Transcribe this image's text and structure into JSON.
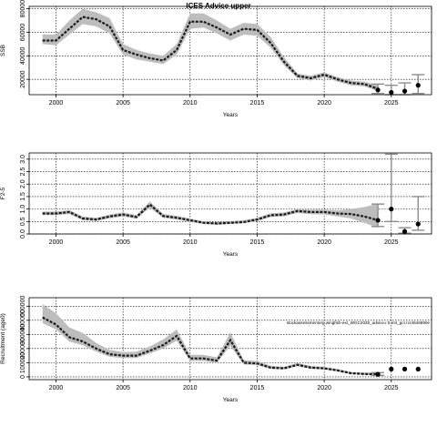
{
  "title": "ICES Advice upper",
  "colors": {
    "line": "#1a1a1a",
    "band": "#bdbdbd",
    "grid": "#000000",
    "errorbar": "#8c8c8c",
    "point": "#000000"
  },
  "chart_data": [
    {
      "type": "line",
      "title": "ICES Advice upper",
      "xlabel": "Years",
      "ylabel": "SSB",
      "xlim": [
        1998,
        2028
      ],
      "ylim": [
        7000,
        82000
      ],
      "xticks": [
        2000,
        2005,
        2010,
        2015,
        2020,
        2025
      ],
      "yticks": [
        20000,
        40000,
        60000,
        80000
      ],
      "ytick_labels": [
        "20000",
        "40000",
        "60000",
        "80000"
      ],
      "grid": true,
      "series": [
        {
          "x": [
            1999,
            2000,
            2001,
            2002,
            2003,
            2004,
            2005,
            2006,
            2007,
            2008,
            2009,
            2010,
            2011,
            2012,
            2013,
            2014,
            2015,
            2016,
            2017,
            2018,
            2019,
            2020,
            2021,
            2022,
            2023,
            2024
          ],
          "values": [
            53000,
            53000,
            63000,
            73000,
            71000,
            65000,
            45000,
            41000,
            38000,
            36000,
            45000,
            69000,
            69000,
            64000,
            58000,
            63000,
            62000,
            51000,
            35000,
            23000,
            21000,
            24000,
            20000,
            17000,
            16000,
            12000
          ],
          "lower": [
            50000,
            49000,
            58000,
            67000,
            65000,
            59000,
            41000,
            37000,
            35000,
            33000,
            41000,
            63000,
            64000,
            59000,
            53000,
            58000,
            57000,
            47000,
            32000,
            21000,
            19000,
            22000,
            18000,
            15000,
            14000,
            10000
          ],
          "upper": [
            58000,
            58000,
            70000,
            80000,
            77000,
            72000,
            50000,
            45000,
            42000,
            40000,
            50000,
            76000,
            76000,
            70000,
            63000,
            68000,
            67000,
            56000,
            39000,
            25000,
            23000,
            26000,
            22000,
            19000,
            18000,
            15000
          ]
        }
      ],
      "points": [
        {
          "x": 2024,
          "y": 11000,
          "low": 8000,
          "high": 16000
        },
        {
          "x": 2025,
          "y": 9000,
          "low": 7000,
          "high": 15000
        },
        {
          "x": 2026,
          "y": 10000,
          "low": 7000,
          "high": 17000
        },
        {
          "x": 2027,
          "y": 15000,
          "low": 8000,
          "high": 24000
        }
      ]
    },
    {
      "type": "line",
      "title": "",
      "xlabel": "Years",
      "ylabel": "F2-5",
      "xlim": [
        1998,
        2028
      ],
      "ylim": [
        0,
        3.25
      ],
      "xticks": [
        2000,
        2005,
        2010,
        2015,
        2020,
        2025
      ],
      "yticks": [
        0.0,
        0.5,
        1.0,
        1.5,
        2.0,
        2.5,
        3.0
      ],
      "ytick_labels": [
        "0.0",
        "0.5",
        "1.0",
        "1.5",
        "2.0",
        "2.5",
        "3.0"
      ],
      "grid": true,
      "series": [
        {
          "x": [
            1999,
            2000,
            2001,
            2002,
            2003,
            2004,
            2005,
            2006,
            2007,
            2008,
            2009,
            2010,
            2011,
            2012,
            2013,
            2014,
            2015,
            2016,
            2017,
            2018,
            2019,
            2020,
            2021,
            2022,
            2023,
            2024
          ],
          "values": [
            0.82,
            0.82,
            0.88,
            0.62,
            0.58,
            0.7,
            0.78,
            0.68,
            1.18,
            0.72,
            0.65,
            0.55,
            0.45,
            0.42,
            0.45,
            0.48,
            0.58,
            0.75,
            0.78,
            0.92,
            0.88,
            0.88,
            0.82,
            0.8,
            0.7,
            0.55
          ],
          "lower": [
            0.76,
            0.76,
            0.8,
            0.56,
            0.52,
            0.63,
            0.7,
            0.61,
            1.05,
            0.65,
            0.58,
            0.49,
            0.4,
            0.37,
            0.4,
            0.43,
            0.52,
            0.68,
            0.71,
            0.84,
            0.79,
            0.78,
            0.7,
            0.62,
            0.45,
            0.25
          ],
          "upper": [
            0.9,
            0.9,
            0.96,
            0.7,
            0.65,
            0.78,
            0.87,
            0.76,
            1.3,
            0.8,
            0.73,
            0.62,
            0.51,
            0.48,
            0.51,
            0.55,
            0.65,
            0.83,
            0.86,
            1.0,
            0.97,
            0.98,
            0.95,
            1.0,
            1.08,
            1.22
          ]
        }
      ],
      "points": [
        {
          "x": 2024,
          "y": 0.55,
          "low": 0.3,
          "high": 1.2
        },
        {
          "x": 2025,
          "y": 1.0,
          "low": 0.5,
          "high": 3.2
        },
        {
          "x": 2026,
          "y": 0.1,
          "low": 0.03,
          "high": 0.25
        },
        {
          "x": 2027,
          "y": 0.4,
          "low": 0.15,
          "high": 1.5
        }
      ]
    },
    {
      "type": "line",
      "title": "",
      "xlabel": "Years",
      "ylabel": "Recruitment (age0)",
      "xlim": [
        1998,
        2028
      ],
      "ylim": [
        -20000,
        560000
      ],
      "xticks": [
        2000,
        2005,
        2010,
        2015,
        2020,
        2025
      ],
      "yticks": [
        0,
        100000,
        200000,
        300000,
        400000,
        500000
      ],
      "ytick_labels": [
        "0",
        "100000",
        "200000",
        "300000",
        "400000",
        "500000"
      ],
      "grid": true,
      "annotation": "stockassessmentorg.wingfish-ext_WGC2025_advice.r.0.rmt_gcr.rcr4646690e",
      "series": [
        {
          "x": [
            1999,
            2000,
            2001,
            2002,
            2003,
            2004,
            2005,
            2006,
            2007,
            2008,
            2009,
            2010,
            2011,
            2012,
            2013,
            2014,
            2015,
            2016,
            2017,
            2018,
            2019,
            2020,
            2021,
            2022,
            2023,
            2024
          ],
          "values": [
            420000,
            370000,
            280000,
            250000,
            200000,
            160000,
            150000,
            150000,
            185000,
            225000,
            290000,
            130000,
            130000,
            115000,
            260000,
            100000,
            95000,
            65000,
            60000,
            85000,
            65000,
            60000,
            45000,
            25000,
            20000,
            18000
          ],
          "lower": [
            380000,
            335000,
            250000,
            222000,
            178000,
            142000,
            133000,
            133000,
            165000,
            200000,
            255000,
            112000,
            112000,
            100000,
            220000,
            87000,
            83000,
            56000,
            52000,
            75000,
            57000,
            52000,
            38000,
            20000,
            15000,
            10000
          ],
          "upper": [
            515000,
            450000,
            350000,
            310000,
            240000,
            190000,
            175000,
            178000,
            215000,
            265000,
            335000,
            155000,
            155000,
            138000,
            315000,
            118000,
            112000,
            78000,
            72000,
            98000,
            77000,
            71000,
            56000,
            34000,
            30000,
            30000
          ]
        }
      ],
      "points": [
        {
          "x": 2024,
          "y": 18000,
          "low": 10000,
          "high": 30000
        },
        {
          "x": 2025,
          "y": 55000,
          "low": 55000,
          "high": 55000
        },
        {
          "x": 2026,
          "y": 55000,
          "low": 55000,
          "high": 55000
        },
        {
          "x": 2027,
          "y": 55000,
          "low": 55000,
          "high": 55000
        }
      ]
    }
  ]
}
